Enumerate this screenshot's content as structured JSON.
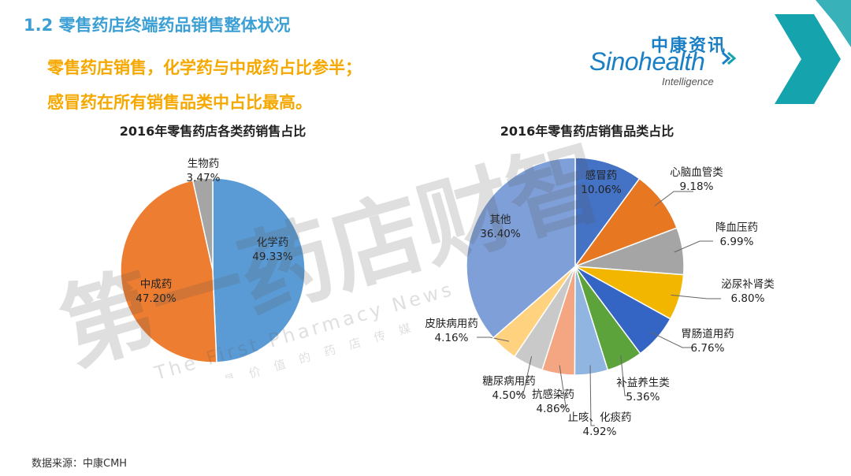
{
  "section_title": "1.2 零售药店终端药品销售整体状况",
  "headlines": [
    "零售药店销售，化学药与中成药占比参半；",
    "感冒药在所有销售品类中占比最高。"
  ],
  "logo": {
    "cn": "中康资讯",
    "en": "Sinohealth",
    "sub": "Intelligence"
  },
  "watermark": {
    "main": "第一药店财智",
    "en": "The First Pharmacy News",
    "cn_small": "最具价值的药店传媒"
  },
  "source_note": "数据来源：中康CMH",
  "colors": {
    "accent_blue": "#3b9fd3",
    "headline_orange": "#f5a800",
    "brand_teal": "#15a3ad"
  },
  "chart_data": [
    {
      "type": "pie",
      "title": "2016年零售药店各类药销售占比",
      "slices": [
        {
          "name": "化学药",
          "value": 49.33,
          "label": "49.33%",
          "color": "#5b9bd5"
        },
        {
          "name": "中成药",
          "value": 47.2,
          "label": "47.20%",
          "color": "#ed7d31"
        },
        {
          "name": "生物药",
          "value": 3.47,
          "label": "3.47%",
          "color": "#a5a5a5"
        }
      ]
    },
    {
      "type": "pie",
      "title": "2016年零售药店销售品类占比",
      "slices": [
        {
          "name": "感冒药",
          "value": 10.06,
          "label": "10.06%",
          "color": "#4472c4"
        },
        {
          "name": "心脑血管类",
          "value": 9.18,
          "label": "9.18%",
          "color": "#e87722"
        },
        {
          "name": "降血压药",
          "value": 6.99,
          "label": "6.99%",
          "color": "#a5a5a5"
        },
        {
          "name": "泌尿补肾类",
          "value": 6.8,
          "label": "6.80%",
          "color": "#f2b600"
        },
        {
          "name": "胃肠道用药",
          "value": 6.76,
          "label": "6.76%",
          "color": "#3565c4"
        },
        {
          "name": "补益养生类",
          "value": 5.36,
          "label": "5.36%",
          "color": "#5ca33b"
        },
        {
          "name": "止咳、化痰药",
          "value": 4.92,
          "label": "4.92%",
          "color": "#8fb5e0"
        },
        {
          "name": "抗感染药",
          "value": 4.86,
          "label": "4.86%",
          "color": "#f4a582"
        },
        {
          "name": "糖尿病用药",
          "value": 4.5,
          "label": "4.50%",
          "color": "#c9c9c9"
        },
        {
          "name": "皮肤病用药",
          "value": 4.16,
          "label": "4.16%",
          "color": "#ffd27f"
        },
        {
          "name": "其他",
          "value": 36.4,
          "label": "36.40%",
          "color": "#7f9fd8"
        }
      ]
    }
  ]
}
